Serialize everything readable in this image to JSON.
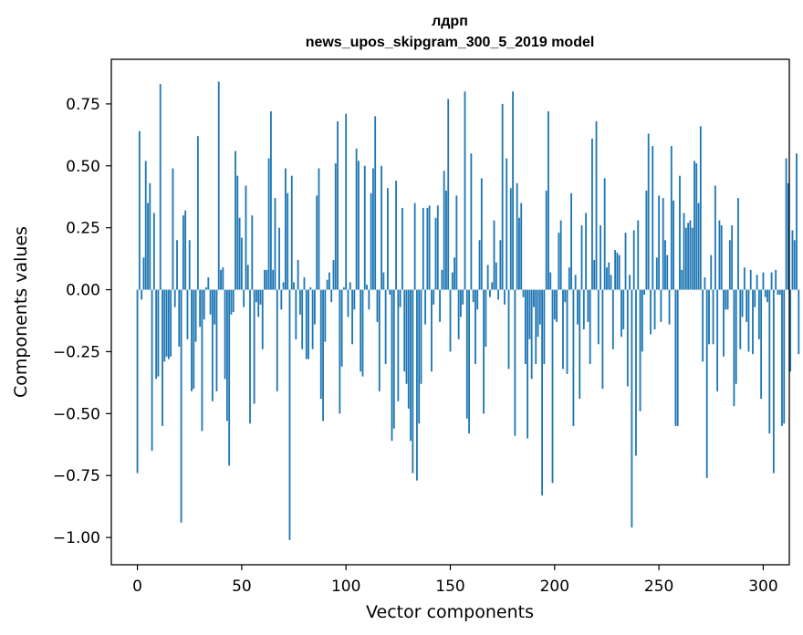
{
  "chart_data": {
    "type": "bar",
    "title": "лдрп",
    "subtitle": "news_upos_skipgram_300_5_2019 model",
    "xlabel": "Vector components",
    "ylabel": "Components values",
    "xlim": [
      -12.5,
      312.5
    ],
    "ylim": [
      -1.11,
      0.93
    ],
    "x_ticks": [
      0,
      50,
      100,
      150,
      200,
      250,
      300
    ],
    "y_ticks": [
      0.75,
      0.5,
      0.25,
      0.0,
      -0.25,
      -0.5,
      -0.75,
      -1.0
    ],
    "x_tick_labels": [
      "0",
      "50",
      "100",
      "150",
      "200",
      "250",
      "300"
    ],
    "y_tick_labels": [
      "0.75",
      "0.50",
      "0.25",
      "0.00",
      "−0.25",
      "−0.50",
      "−0.75",
      "−1.00"
    ],
    "bar_color": "#1f77b4",
    "grid": false,
    "values": [
      -0.74,
      0.64,
      -0.04,
      0.13,
      0.52,
      0.35,
      0.43,
      -0.65,
      0.31,
      -0.36,
      -0.35,
      0.83,
      -0.55,
      -0.29,
      -0.27,
      -0.28,
      -0.27,
      0.49,
      -0.07,
      0.2,
      -0.23,
      -0.94,
      0.3,
      0.32,
      -0.2,
      0.2,
      -0.41,
      -0.4,
      -0.21,
      0.62,
      -0.15,
      -0.57,
      -0.12,
      0.01,
      0.05,
      -0.1,
      -0.45,
      -0.14,
      -0.41,
      0.84,
      0.08,
      0.09,
      -0.36,
      -0.53,
      -0.71,
      -0.1,
      -0.09,
      0.56,
      0.46,
      0.29,
      0.21,
      -0.07,
      0.42,
      0.1,
      -0.54,
      0.3,
      -0.46,
      -0.05,
      -0.11,
      -0.06,
      -0.24,
      0.08,
      0.08,
      0.53,
      0.72,
      0.08,
      0.37,
      -0.41,
      0.25,
      -0.08,
      0.03,
      0.49,
      0.39,
      -1.01,
      0.46,
      0.03,
      -0.2,
      0.12,
      -0.1,
      -0.24,
      0.05,
      -0.28,
      -0.28,
      0.01,
      -0.24,
      -0.14,
      0.38,
      0.49,
      -0.44,
      -0.53,
      -0.21,
      0.04,
      0.07,
      -0.05,
      0.12,
      0.51,
      0.68,
      -0.5,
      -0.31,
      0.01,
      0.71,
      -0.11,
      0.03,
      -0.22,
      -0.08,
      0.57,
      0.52,
      -0.33,
      -0.35,
      0.5,
      0.02,
      -0.08,
      0.39,
      0.49,
      0.7,
      -0.13,
      -0.41,
      0.5,
      0.07,
      -0.3,
      0.41,
      -0.02,
      -0.61,
      -0.56,
      0.44,
      -0.45,
      -0.07,
      0.33,
      -0.33,
      -0.38,
      -0.48,
      -0.61,
      -0.74,
      0.35,
      -0.77,
      -0.54,
      -0.38,
      0.33,
      -0.14,
      0.33,
      0.34,
      -0.33,
      -0.06,
      0.29,
      0.34,
      -0.13,
      0.08,
      0.48,
      0.4,
      0.77,
      -0.25,
      0.07,
      0.13,
      0.38,
      -0.2,
      -0.11,
      -0.06,
      0.8,
      -0.52,
      -0.58,
      0.55,
      -0.05,
      -0.3,
      -0.08,
      0.2,
      0.45,
      -0.5,
      -0.23,
      0.1,
      -0.03,
      0.03,
      0.28,
      0.11,
      -0.04,
      0.2,
      0.75,
      -0.06,
      0.53,
      -0.32,
      0.41,
      0.8,
      -0.59,
      0.43,
      0.29,
      0.35,
      -0.03,
      -0.3,
      -0.6,
      -0.2,
      -0.36,
      -0.07,
      -0.3,
      -0.19,
      -0.14,
      -0.83,
      -0.3,
      0.4,
      0.72,
      0.07,
      -0.78,
      -0.12,
      -0.13,
      0.23,
      0.28,
      -0.32,
      -0.05,
      -0.34,
      0.09,
      0.39,
      -0.55,
      0.06,
      -0.14,
      -0.44,
      0.26,
      -0.16,
      0.31,
      -0.13,
      -0.3,
      0.61,
      0.12,
      0.68,
      -0.22,
      0.26,
      -0.4,
      0.45,
      0.09,
      0.11,
      0.06,
      -0.24,
      0.16,
      0.15,
      0.14,
      -0.19,
      -0.16,
      0.23,
      -0.39,
      0.06,
      -0.96,
      0.24,
      -0.67,
      0.28,
      -0.49,
      -0.25,
      -0.02,
      0.4,
      0.63,
      -0.18,
      0.58,
      -0.16,
      0.13,
      0.38,
      -0.13,
      0.37,
      0.2,
      0.14,
      -0.14,
      0.58,
      0.36,
      -0.55,
      -0.55,
      0.46,
      0.08,
      0.31,
      0.25,
      0.27,
      0.28,
      0.25,
      0.52,
      0.51,
      0.35,
      0.66,
      -0.29,
      0.05,
      -0.76,
      -0.22,
      0.14,
      -0.22,
      0.42,
      -0.41,
      0.28,
      0.26,
      -0.27,
      -0.08,
      -0.08,
      0.2,
      0.26,
      -0.47,
      -0.38,
      0.37,
      -0.24,
      -0.11,
      0.09,
      -0.13,
      -0.25,
      0.08,
      -0.26,
      -0.07,
      0.06,
      -0.2,
      -0.44,
      0.07,
      -0.03,
      -0.05,
      -0.58,
      0.07,
      -0.74,
      0.08,
      -0.02,
      -0.02,
      -0.55,
      -0.54,
      0.53,
      0.43,
      -0.33,
      0.24,
      0.2,
      0.55,
      -0.26
    ]
  }
}
